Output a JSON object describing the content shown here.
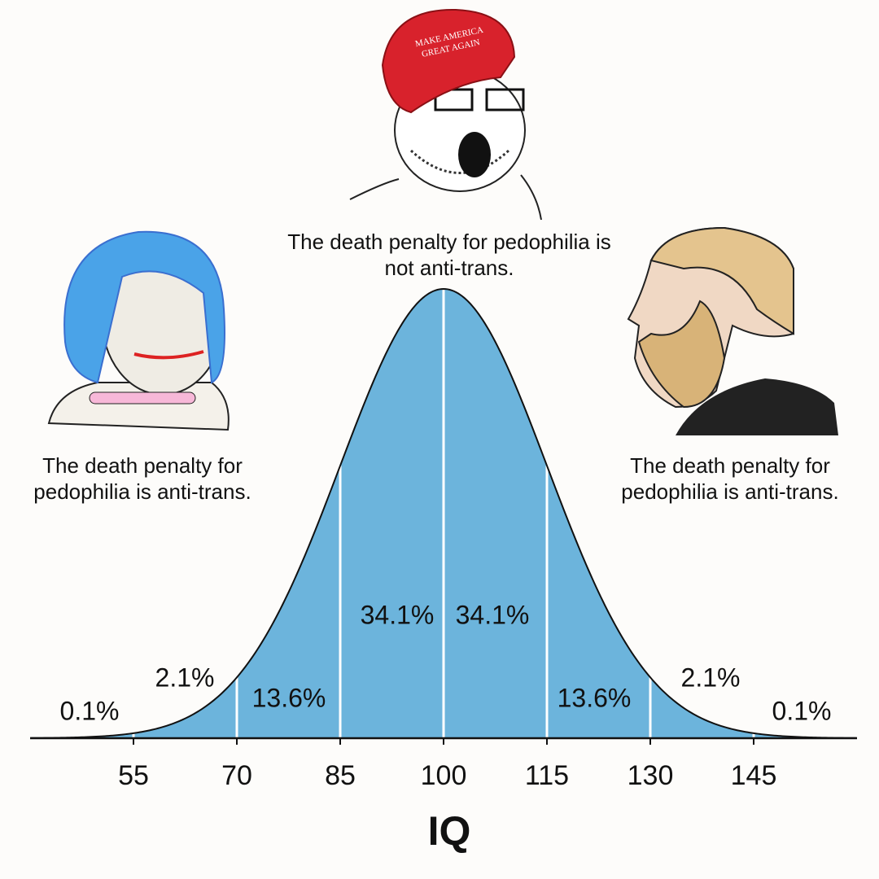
{
  "chart_data": {
    "type": "normal",
    "xlabel": "IQ",
    "xlim": [
      40,
      160
    ],
    "xticks": [
      55,
      70,
      85,
      100,
      115,
      130,
      145
    ],
    "values": [
      0.1,
      2.1,
      13.6,
      34.1,
      34.1,
      13.6,
      2.1,
      0.1
    ],
    "value_labels": [
      "0.1%",
      "2.1%",
      "13.6%",
      "34.1%",
      "34.1%",
      "13.6%",
      "2.1%",
      "0.1%"
    ],
    "color": "#6cb4dc",
    "grid": true,
    "annotations": [
      "The death penalty for pedophilia is anti-trans.",
      "The death penalty for pedophilia is not anti-trans.",
      "The death penalty for pedophilia is anti-trans."
    ],
    "hat_text": [
      "MAKE AMERICA",
      "GREAT AGAIN"
    ]
  }
}
